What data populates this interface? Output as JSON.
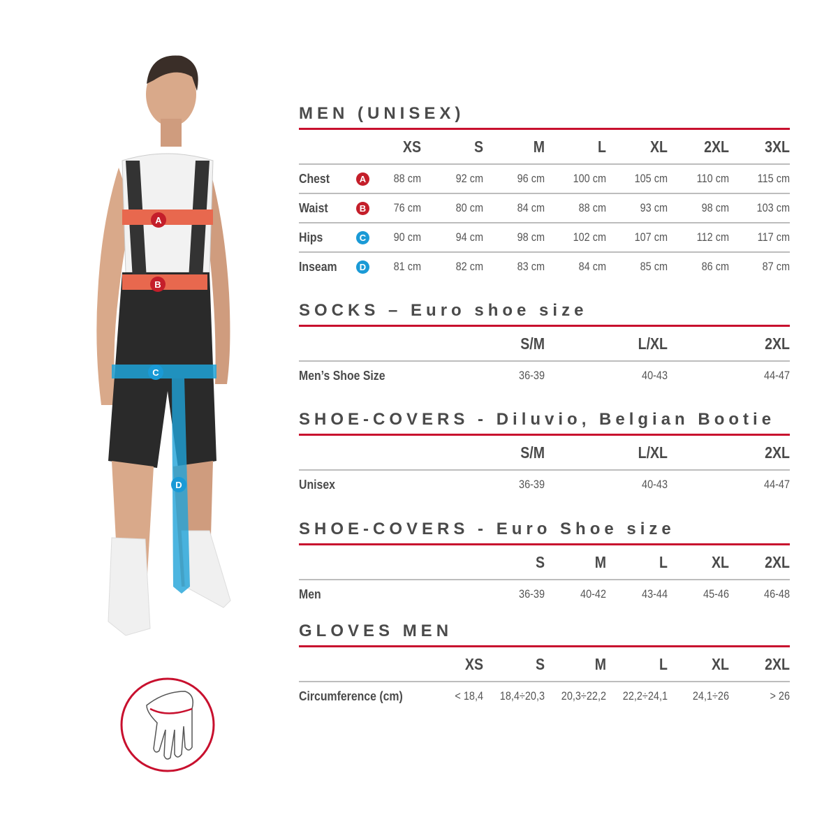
{
  "colors": {
    "accent_red": "#c8102e",
    "badge_red": "#c41e2a",
    "badge_blue": "#1a9ad6",
    "band_orange": "#e8684e",
    "band_blue": "#1fa3d8"
  },
  "figure": {
    "markers": [
      "A",
      "B",
      "C",
      "D"
    ],
    "icons": [
      "person-model-image",
      "hand-circumference-icon"
    ]
  },
  "tables": [
    {
      "title": "MEN (UNISEX)",
      "headers": [
        "XS",
        "S",
        "M",
        "L",
        "XL",
        "2XL",
        "3XL"
      ],
      "rows": [
        {
          "label": "Chest",
          "badge": "A",
          "values": [
            "88 cm",
            "92 cm",
            "96 cm",
            "100 cm",
            "105 cm",
            "110 cm",
            "115 cm"
          ]
        },
        {
          "label": "Waist",
          "badge": "B",
          "values": [
            "76 cm",
            "80 cm",
            "84 cm",
            "88 cm",
            "93 cm",
            "98 cm",
            "103 cm"
          ]
        },
        {
          "label": "Hips",
          "badge": "C",
          "values": [
            "90 cm",
            "94 cm",
            "98 cm",
            "102 cm",
            "107 cm",
            "112 cm",
            "117 cm"
          ]
        },
        {
          "label": "Inseam",
          "badge": "D",
          "values": [
            "81 cm",
            "82 cm",
            "83 cm",
            "84 cm",
            "85 cm",
            "86 cm",
            "87 cm"
          ]
        }
      ]
    },
    {
      "title": "SOCKS – Euro shoe size",
      "headers": [
        "S/M",
        "L/XL",
        "2XL"
      ],
      "rows": [
        {
          "label": "Men’s Shoe Size",
          "values": [
            "36-39",
            "40-43",
            "44-47"
          ]
        }
      ]
    },
    {
      "title": "SHOE-COVERS - Diluvio, Belgian Bootie",
      "headers": [
        "S/M",
        "L/XL",
        "2XL"
      ],
      "rows": [
        {
          "label": "Unisex",
          "values": [
            "36-39",
            "40-43",
            "44-47"
          ]
        }
      ]
    },
    {
      "title": "SHOE-COVERS - Euro Shoe size",
      "headers": [
        "S",
        "M",
        "L",
        "XL",
        "2XL"
      ],
      "rows": [
        {
          "label": "Men",
          "values": [
            "36-39",
            "40-42",
            "43-44",
            "45-46",
            "46-48"
          ]
        }
      ]
    },
    {
      "title": "GLOVES MEN",
      "headers": [
        "XS",
        "S",
        "M",
        "L",
        "XL",
        "2XL"
      ],
      "rows": [
        {
          "label": "Circumference (cm)",
          "values": [
            "< 18,4",
            "18,4÷20,3",
            "20,3÷22,2",
            "22,2÷24,1",
            "24,1÷26",
            "> 26"
          ]
        }
      ]
    }
  ]
}
